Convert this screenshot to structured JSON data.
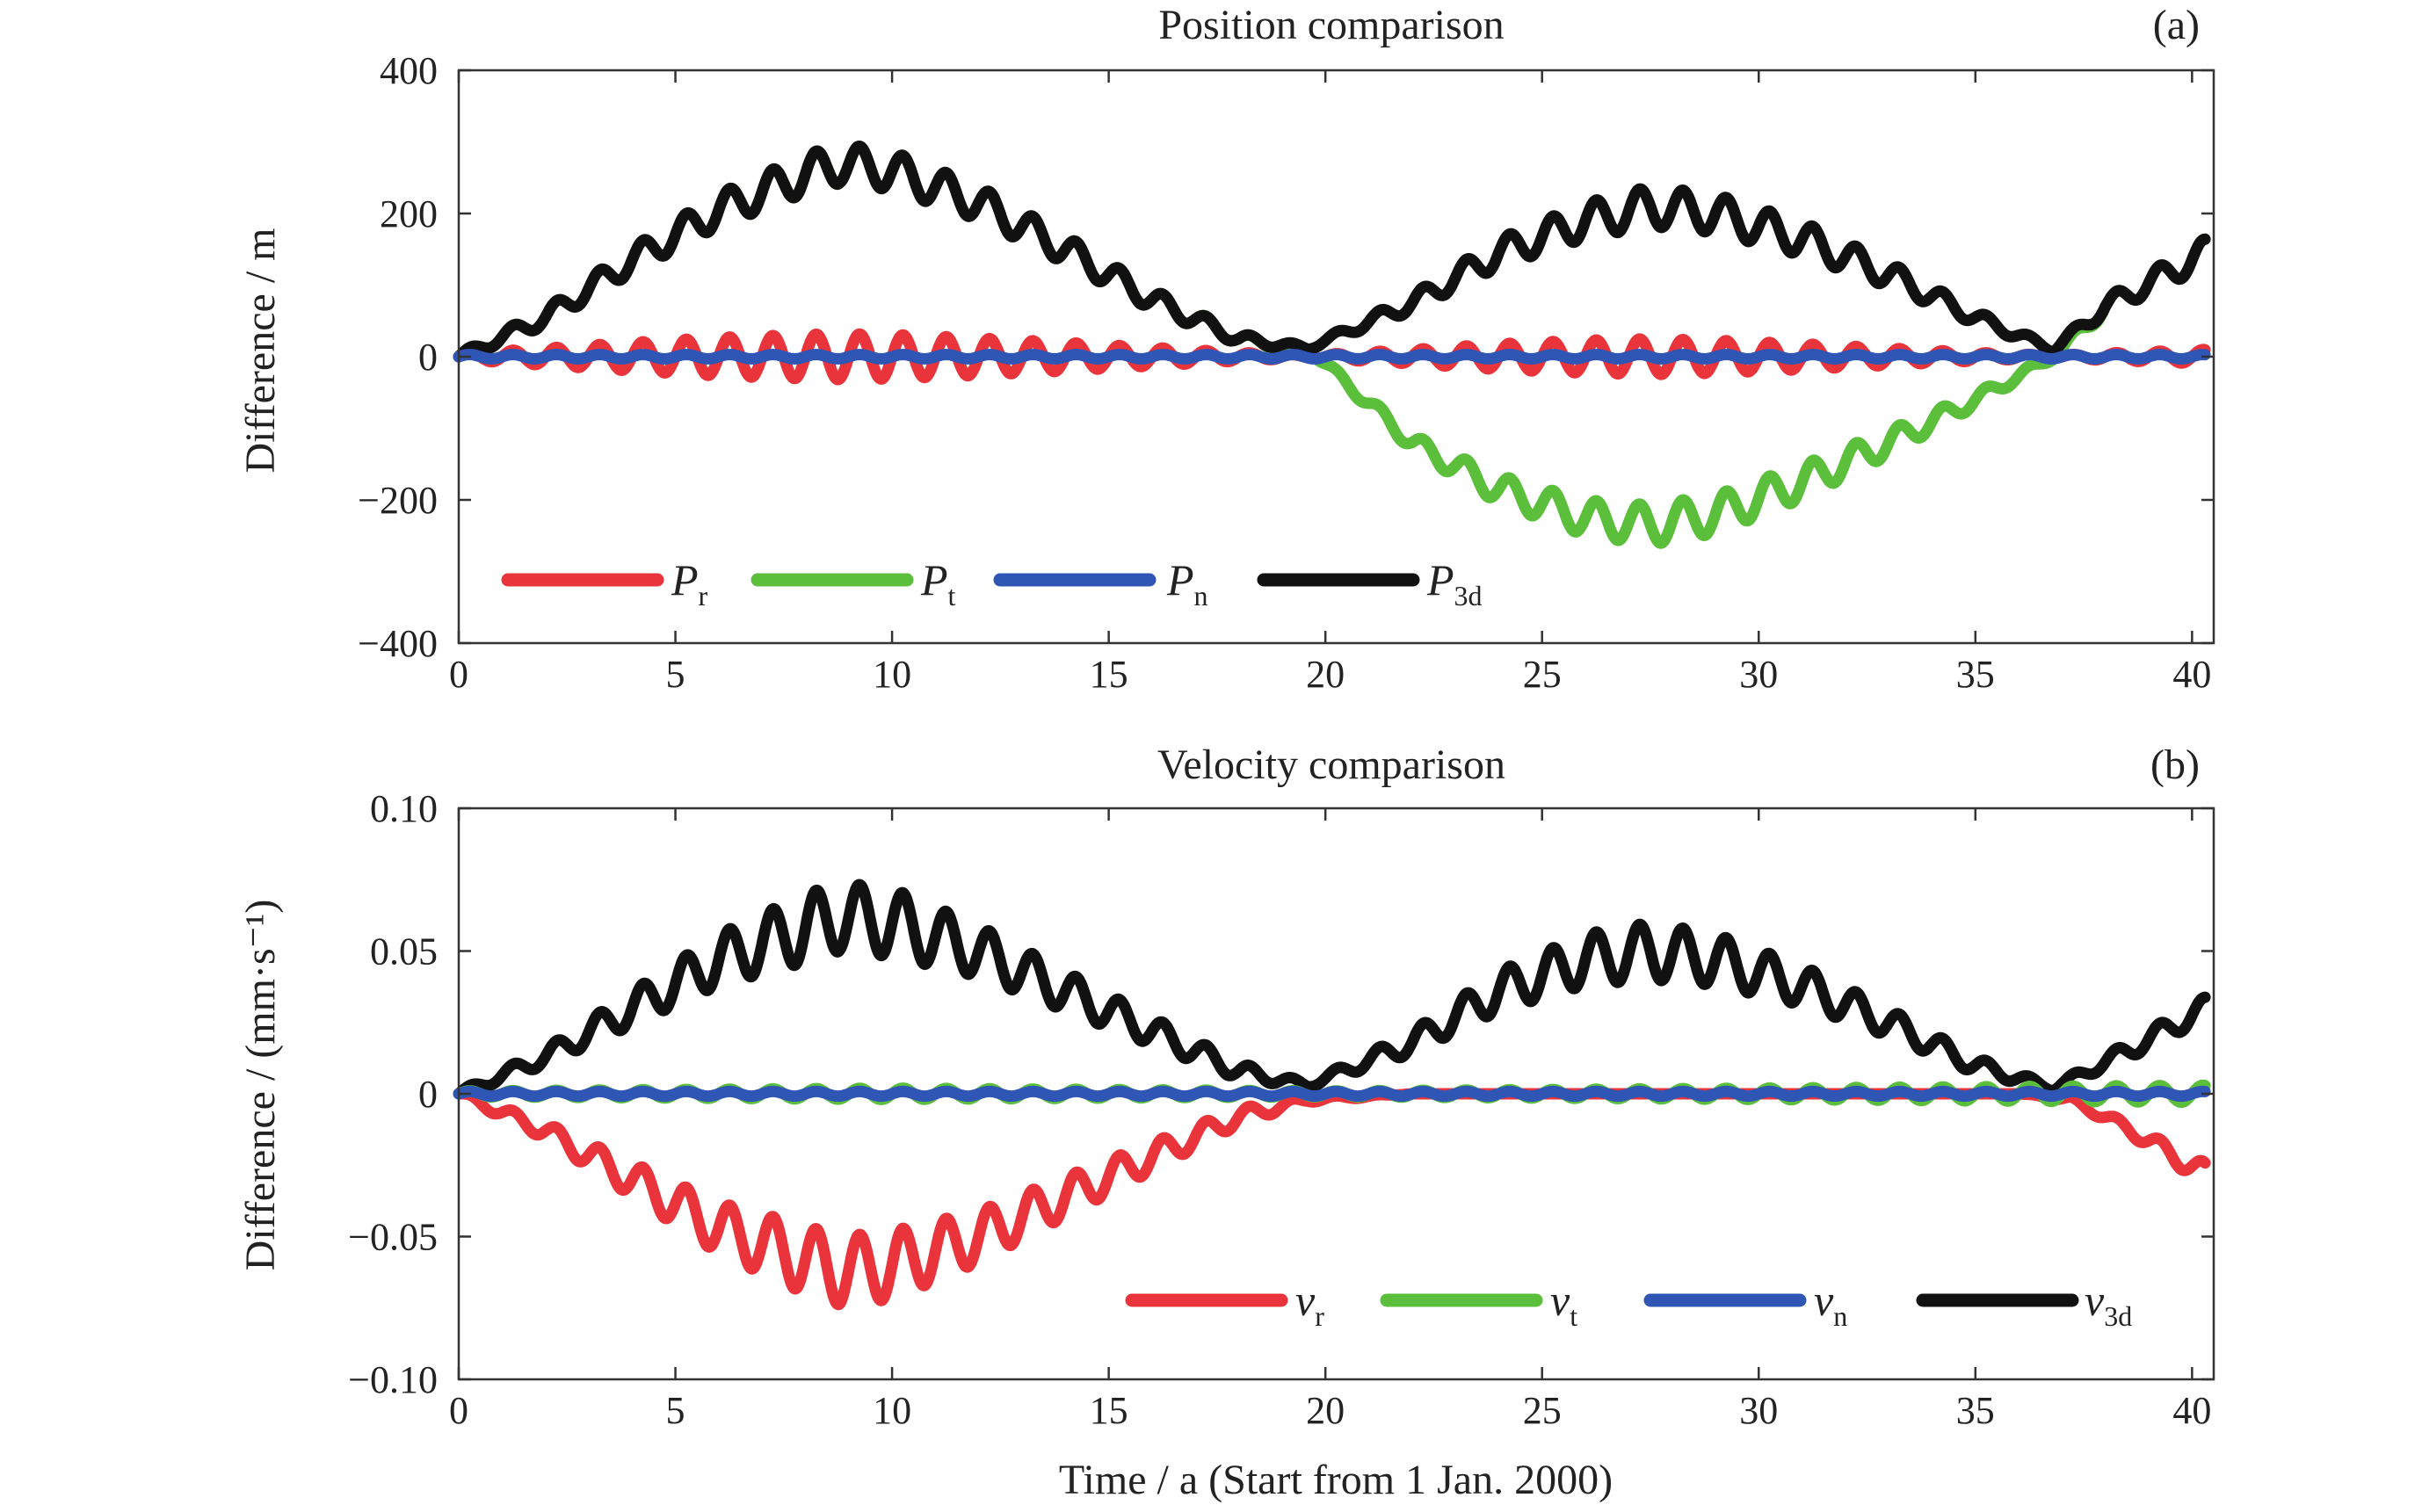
{
  "chart_data": [
    {
      "type": "line",
      "title": "Position comparison",
      "panel_label": "(a)",
      "xlabel": "",
      "ylabel": "Difference / m",
      "xlim": [
        0,
        40.5
      ],
      "ylim": [
        -400,
        400
      ],
      "x_ticks": [
        0,
        5,
        10,
        15,
        20,
        25,
        30,
        35,
        40
      ],
      "x_tick_labels": [
        "0",
        "5",
        "10",
        "15",
        "20",
        "25",
        "30",
        "35",
        "40"
      ],
      "y_ticks": [
        400,
        200,
        0,
        -200,
        -400
      ],
      "y_tick_labels": [
        "400",
        "200",
        "0",
        "−200",
        "−400"
      ],
      "grid": false,
      "legend": {
        "placement": "bottom-left",
        "orientation": "horizontal"
      },
      "series": [
        {
          "name": "P_r",
          "legend_main": "P",
          "legend_sub": "r",
          "color": "#e8343a",
          "x": [
            0,
            2,
            4,
            6,
            8,
            8.8,
            10,
            12,
            14,
            16,
            18,
            19.6,
            22,
            24,
            26,
            27.5,
            29,
            31,
            33,
            35,
            36.8,
            38,
            40.3
          ],
          "trend": [
            0,
            0,
            0,
            0,
            0,
            0,
            0,
            0,
            0,
            0,
            0,
            0,
            0,
            0,
            0,
            0,
            0,
            0,
            0,
            0,
            0,
            0,
            0
          ],
          "oscillation_amplitude": [
            4,
            12,
            20,
            27,
            31,
            32,
            31,
            26,
            20,
            13,
            6,
            2,
            10,
            18,
            23,
            25,
            23,
            18,
            12,
            6,
            2,
            5,
            10
          ],
          "oscillation_period_years": 1.0
        },
        {
          "name": "P_t",
          "legend_main": "P",
          "legend_sub": "t",
          "color": "#5cbf3c",
          "x": [
            0,
            2,
            4,
            6,
            8,
            8.8,
            10,
            12,
            14,
            16,
            18,
            19.6,
            20,
            22,
            24,
            26,
            27.5,
            29,
            31,
            33,
            35,
            36.8,
            38,
            40.3
          ],
          "trend": [
            0,
            55,
            135,
            205,
            255,
            270,
            260,
            215,
            150,
            80,
            25,
            10,
            -10,
            -120,
            -185,
            -225,
            -235,
            -220,
            -175,
            -120,
            -60,
            0,
            70,
            145
          ],
          "oscillation_amplitude": [
            5,
            12,
            18,
            23,
            27,
            28,
            27,
            24,
            20,
            15,
            8,
            3,
            5,
            12,
            20,
            25,
            28,
            27,
            24,
            18,
            10,
            4,
            12,
            20
          ],
          "oscillation_period_years": 1.0
        },
        {
          "name": "P_n",
          "legend_main": "P",
          "legend_sub": "n",
          "color": "#2f56b5",
          "x": [
            0,
            10,
            20,
            30,
            40.3
          ],
          "trend": [
            0,
            0,
            0,
            0,
            0
          ],
          "oscillation_amplitude": [
            3,
            3,
            3,
            3,
            3
          ],
          "oscillation_period_years": 1.0
        },
        {
          "name": "P_3d",
          "legend_main": "P",
          "legend_sub": "3d",
          "color": "#111111",
          "x": [
            0,
            2,
            4,
            6,
            8,
            8.8,
            10,
            12,
            14,
            16,
            18,
            19.6,
            22,
            24,
            26,
            27.5,
            29,
            31,
            33,
            35,
            36.8,
            38,
            40.3
          ],
          "trend": [
            0,
            55,
            135,
            205,
            255,
            270,
            260,
            215,
            150,
            80,
            25,
            12,
            75,
            145,
            190,
            210,
            200,
            165,
            115,
            55,
            10,
            70,
            145
          ],
          "oscillation_amplitude": [
            5,
            12,
            18,
            23,
            27,
            28,
            27,
            24,
            20,
            15,
            8,
            3,
            12,
            20,
            25,
            28,
            27,
            24,
            18,
            10,
            4,
            12,
            20
          ],
          "oscillation_period_years": 1.0
        }
      ]
    },
    {
      "type": "line",
      "title": "Velocity comparison",
      "panel_label": "(b)",
      "xlabel": "Time / a (Start from 1 Jan. 2000)",
      "ylabel": "Difference / (mm·s⁻¹)",
      "xlim": [
        0,
        40.5
      ],
      "ylim": [
        -0.1,
        0.1
      ],
      "x_ticks": [
        0,
        5,
        10,
        15,
        20,
        25,
        30,
        35,
        40
      ],
      "x_tick_labels": [
        "0",
        "5",
        "10",
        "15",
        "20",
        "25",
        "30",
        "35",
        "40"
      ],
      "y_ticks": [
        0.1,
        0.05,
        0,
        -0.05,
        -0.1
      ],
      "y_tick_labels": [
        "0.10",
        "0.05",
        "0",
        "−0.05",
        "−0.10"
      ],
      "grid": false,
      "legend": {
        "placement": "bottom-right",
        "orientation": "horizontal"
      },
      "series": [
        {
          "name": "v_r",
          "legend_main": "v",
          "legend_sub": "r",
          "color": "#e8343a",
          "x": [
            0,
            2,
            4,
            6,
            8,
            8.8,
            10,
            12,
            14,
            16,
            18,
            19.6,
            22,
            24,
            26,
            28,
            30,
            32,
            34,
            36,
            37.2,
            38.5,
            40.3
          ],
          "trend": [
            0,
            -0.013,
            -0.03,
            -0.047,
            -0.058,
            -0.062,
            -0.06,
            -0.05,
            -0.036,
            -0.022,
            -0.008,
            -0.002,
            0,
            0,
            0,
            0,
            0,
            0,
            0,
            0,
            -0.002,
            -0.012,
            -0.028
          ],
          "oscillation_amplitude": [
            0.001,
            0.003,
            0.006,
            0.009,
            0.012,
            0.012,
            0.012,
            0.009,
            0.007,
            0.005,
            0.003,
            0.001,
            0,
            0,
            0,
            0,
            0,
            0,
            0,
            0,
            0.001,
            0.002,
            0.004
          ],
          "oscillation_period_years": 1.0
        },
        {
          "name": "v_t",
          "legend_main": "v",
          "legend_sub": "t",
          "color": "#5cbf3c",
          "x": [
            0,
            10,
            20,
            30,
            40.3
          ],
          "trend": [
            0,
            0,
            0,
            0,
            0
          ],
          "oscillation_amplitude": [
            0.001,
            0.002,
            0.001,
            0.002,
            0.003
          ],
          "oscillation_period_years": 1.0
        },
        {
          "name": "v_n",
          "legend_main": "v",
          "legend_sub": "n",
          "color": "#2f56b5",
          "x": [
            0,
            10,
            20,
            30,
            40.3
          ],
          "trend": [
            0,
            0,
            0,
            0,
            0
          ],
          "oscillation_amplitude": [
            0.0008,
            0.0008,
            0.0008,
            0.0008,
            0.0008
          ],
          "oscillation_period_years": 1.0
        },
        {
          "name": "v_3d",
          "legend_main": "v",
          "legend_sub": "3d",
          "color": "#111111",
          "x": [
            0,
            2,
            4,
            6,
            8,
            8.8,
            10,
            12,
            14,
            16,
            18,
            19.6,
            22,
            24,
            26,
            27.5,
            29,
            31,
            33,
            35,
            36.8,
            38.5,
            40.3
          ],
          "trend": [
            0,
            0.013,
            0.03,
            0.047,
            0.058,
            0.062,
            0.06,
            0.05,
            0.036,
            0.022,
            0.008,
            0.003,
            0.018,
            0.036,
            0.047,
            0.05,
            0.047,
            0.038,
            0.025,
            0.01,
            0.002,
            0.015,
            0.03
          ],
          "oscillation_amplitude": [
            0.001,
            0.003,
            0.006,
            0.009,
            0.012,
            0.012,
            0.012,
            0.009,
            0.007,
            0.005,
            0.003,
            0.001,
            0.004,
            0.007,
            0.009,
            0.01,
            0.009,
            0.007,
            0.005,
            0.003,
            0.001,
            0.003,
            0.004
          ],
          "oscillation_period_years": 1.0
        }
      ]
    }
  ]
}
